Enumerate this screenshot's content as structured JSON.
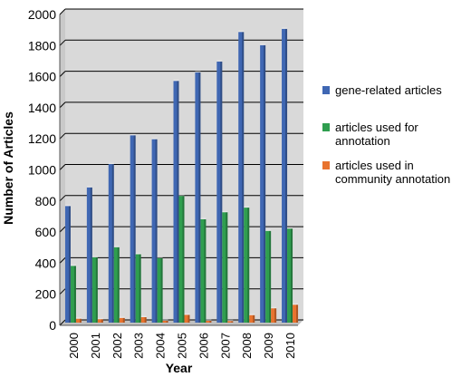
{
  "chart_data": {
    "type": "bar",
    "title": "",
    "xlabel": "Year",
    "ylabel": "Number of Articles",
    "ylim": [
      0,
      2000
    ],
    "yticks": [
      0,
      200,
      400,
      600,
      800,
      1000,
      1200,
      1400,
      1600,
      1800,
      2000
    ],
    "grid": true,
    "legend_position": "right",
    "categories": [
      "2000",
      "2001",
      "2002",
      "2003",
      "2004",
      "2005",
      "2006",
      "2007",
      "2008",
      "2009",
      "2010"
    ],
    "series": [
      {
        "name": "gene-related articles",
        "color": "#3f67b3",
        "values": [
          750,
          870,
          1020,
          1205,
          1180,
          1555,
          1610,
          1680,
          1870,
          1785,
          1890
        ]
      },
      {
        "name": "articles used for\nannotation",
        "color": "#2f9e4f",
        "values": [
          365,
          420,
          485,
          440,
          415,
          815,
          665,
          710,
          740,
          590,
          605
        ]
      },
      {
        "name": "articles used in\ncommunity annotation",
        "color": "#e8732e",
        "values": [
          25,
          22,
          30,
          35,
          12,
          50,
          12,
          10,
          48,
          92,
          115
        ]
      }
    ]
  }
}
